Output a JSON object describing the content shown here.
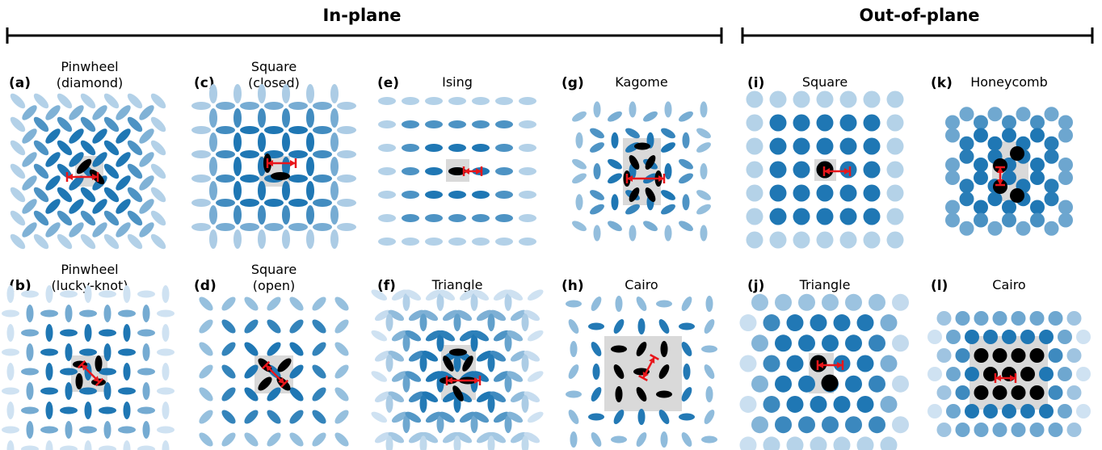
{
  "header": {
    "in_plane": "In-plane",
    "out_of_plane": "Out-of-plane"
  },
  "panels": [
    {
      "id": "a",
      "label": "(a)",
      "title_line1": "Pinwheel",
      "title_line2": "(diamond)",
      "kind": "in-plane"
    },
    {
      "id": "b",
      "label": "(b)",
      "title_line1": "Pinwheel",
      "title_line2": "(lucky-knot)",
      "kind": "in-plane"
    },
    {
      "id": "c",
      "label": "(c)",
      "title_line1": "Square",
      "title_line2": "(closed)",
      "kind": "in-plane"
    },
    {
      "id": "d",
      "label": "(d)",
      "title_line1": "Square",
      "title_line2": "(open)",
      "kind": "in-plane"
    },
    {
      "id": "e",
      "label": "(e)",
      "title_line1": "Ising",
      "title_line2": "",
      "kind": "in-plane"
    },
    {
      "id": "f",
      "label": "(f)",
      "title_line1": "Triangle",
      "title_line2": "",
      "kind": "in-plane"
    },
    {
      "id": "g",
      "label": "(g)",
      "title_line1": "Kagome",
      "title_line2": "",
      "kind": "in-plane"
    },
    {
      "id": "h",
      "label": "(h)",
      "title_line1": "Cairo",
      "title_line2": "",
      "kind": "in-plane"
    },
    {
      "id": "i",
      "label": "(i)",
      "title_line1": "Square",
      "title_line2": "",
      "kind": "out-of-plane"
    },
    {
      "id": "j",
      "label": "(j)",
      "title_line1": "Triangle",
      "title_line2": "",
      "kind": "out-of-plane"
    },
    {
      "id": "k",
      "label": "(k)",
      "title_line1": "Honeycomb",
      "title_line2": "",
      "kind": "out-of-plane"
    },
    {
      "id": "l",
      "label": "(l)",
      "title_line1": "Cairo",
      "title_line2": "",
      "kind": "out-of-plane"
    }
  ],
  "colors": {
    "magnet_center": "#1f77b4",
    "magnet_fade": "#deebf7",
    "unit_cell_magnet": "#000000",
    "unit_cell_box": "#d9d9d9",
    "lattice_vector": "#e8161b",
    "header_bar": "#000000"
  }
}
